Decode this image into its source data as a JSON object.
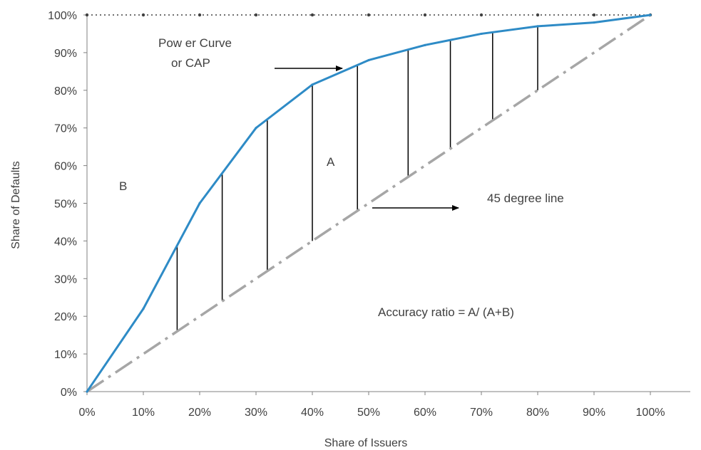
{
  "chart_data": {
    "type": "line",
    "xlabel": "Share of Issuers",
    "ylabel": "Share of Defaults",
    "xlim": [
      0,
      100
    ],
    "ylim": [
      0,
      100
    ],
    "x_ticks": [
      "0%",
      "10%",
      "20%",
      "30%",
      "40%",
      "50%",
      "60%",
      "70%",
      "80%",
      "90%",
      "100%"
    ],
    "y_ticks": [
      "0%",
      "10%",
      "20%",
      "30%",
      "40%",
      "50%",
      "60%",
      "70%",
      "80%",
      "90%",
      "100%"
    ],
    "series": [
      {
        "name": "Power Curve or CAP",
        "color": "#2e8bc6",
        "style": "solid",
        "x": [
          0,
          10,
          20,
          30,
          40,
          50,
          60,
          70,
          80,
          90,
          100
        ],
        "y": [
          0,
          22,
          50,
          70,
          81.5,
          88,
          92,
          95,
          97,
          98,
          100
        ]
      },
      {
        "name": "45 degree line",
        "color": "#a6a6a6",
        "style": "dash-dot",
        "x": [
          0,
          100
        ],
        "y": [
          0,
          100
        ]
      },
      {
        "name": "",
        "color": "#404040",
        "style": "dotted",
        "x": [
          0,
          10,
          20,
          30,
          40,
          50,
          60,
          70,
          80,
          90,
          100
        ],
        "y": [
          100,
          100,
          100,
          100,
          100,
          100,
          100,
          100,
          100,
          100,
          100
        ]
      }
    ],
    "area_lines_x": [
      16,
      24,
      32,
      40,
      48,
      57,
      64.5,
      72,
      80
    ],
    "annotations": {
      "power_curve_line1": "Pow er Curve",
      "power_curve_line2": "or CAP",
      "region_a": "A",
      "region_b": "B",
      "diagonal_label": "45 degree line",
      "accuracy_ratio": "Accuracy ratio = A/ (A+B)"
    }
  }
}
